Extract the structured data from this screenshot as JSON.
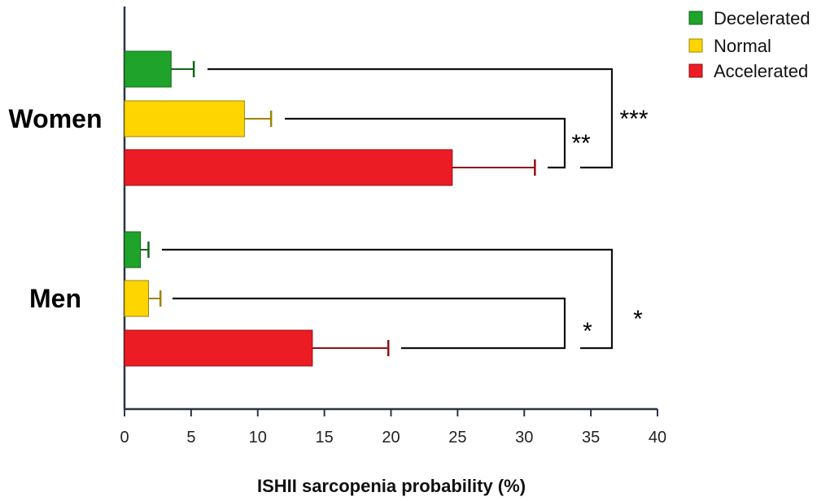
{
  "chart_data": {
    "type": "bar",
    "orientation": "horizontal",
    "xlabel": "ISHII sarcopenia probability (%)",
    "xlim": [
      0,
      40
    ],
    "xticks": [
      0,
      5,
      10,
      15,
      20,
      25,
      30,
      35,
      40
    ],
    "groups": [
      "Women",
      "Men"
    ],
    "series": [
      {
        "name": "Decelerated",
        "color": "#1fa32a",
        "values": [
          3.5,
          1.2
        ],
        "errors": [
          1.7,
          0.6
        ]
      },
      {
        "name": "Normal",
        "color": "#ffd500",
        "values": [
          9.0,
          1.8
        ],
        "errors": [
          2.0,
          0.9
        ]
      },
      {
        "name": "Accelerated",
        "color": "#ec1c24",
        "values": [
          24.6,
          14.1
        ],
        "errors": [
          6.2,
          5.7
        ]
      }
    ],
    "legend_position": "top-right",
    "significance": [
      {
        "group": "Women",
        "label": "**",
        "between": [
          "Normal",
          "Accelerated"
        ]
      },
      {
        "group": "Women",
        "label": "***",
        "between": [
          "Decelerated",
          "Accelerated"
        ]
      },
      {
        "group": "Men",
        "label": "*",
        "between": [
          "Normal",
          "Accelerated"
        ]
      },
      {
        "group": "Men",
        "label": "*",
        "between": [
          "Decelerated",
          "Accelerated"
        ]
      }
    ]
  }
}
